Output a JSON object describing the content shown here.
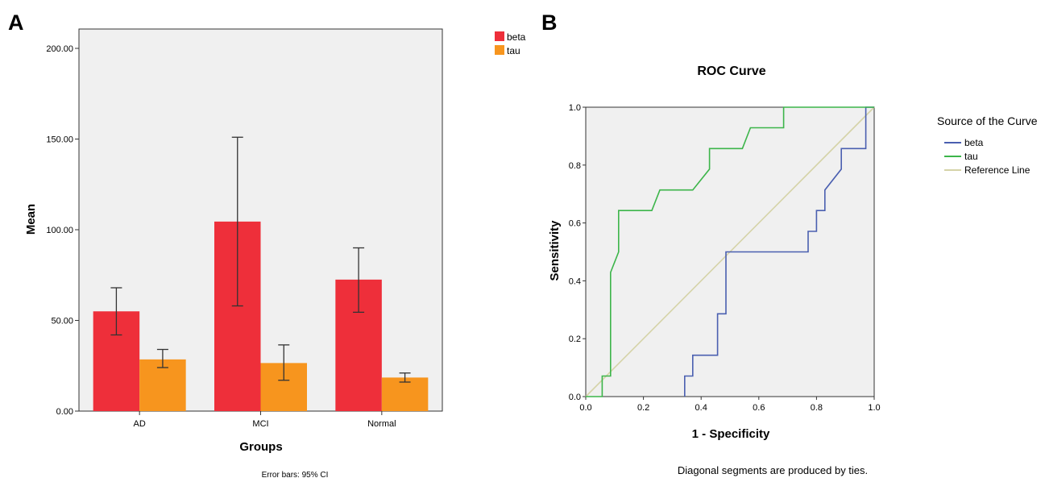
{
  "panel_a_letter": "A",
  "panel_b_letter": "B",
  "chart_data": [
    {
      "type": "bar",
      "title": "",
      "xlabel": "Groups",
      "ylabel": "Mean",
      "ylim": [
        0,
        210
      ],
      "yticks": [
        "0.00",
        "50.00",
        "100.00",
        "150.00",
        "200.00"
      ],
      "ytick_values": [
        0,
        50,
        100,
        150,
        200
      ],
      "categories": [
        "AD",
        "MCI",
        "Normal"
      ],
      "series": [
        {
          "name": "beta",
          "color": "#ee2f3a",
          "values": [
            55,
            104.5,
            72.5
          ],
          "ci_low": [
            42,
            58,
            54.5
          ],
          "ci_high": [
            68,
            151,
            90
          ]
        },
        {
          "name": "tau",
          "color": "#f7951e",
          "values": [
            28.5,
            26.5,
            18.5
          ],
          "ci_low": [
            24,
            17,
            16
          ],
          "ci_high": [
            34,
            36.5,
            21
          ]
        }
      ],
      "legend_position": "top-right",
      "note": "Error bars: 95% CI"
    },
    {
      "type": "line",
      "title": "ROC Curve",
      "xlabel": "1 - Specificity",
      "ylabel": "Sensitivity",
      "xlim": [
        0,
        1
      ],
      "ylim": [
        0,
        1
      ],
      "xticks": [
        "0.0",
        "0.2",
        "0.4",
        "0.6",
        "0.8",
        "1.0"
      ],
      "yticks": [
        "0.0",
        "0.2",
        "0.4",
        "0.6",
        "0.8",
        "1.0"
      ],
      "tick_values": [
        0,
        0.2,
        0.4,
        0.6,
        0.8,
        1.0
      ],
      "legend_title": "Source of the Curve",
      "legend_position": "right",
      "series": [
        {
          "name": "beta",
          "color": "#4a5fb0",
          "points": [
            [
              0.343,
              0
            ],
            [
              0.343,
              0.071
            ],
            [
              0.371,
              0.071
            ],
            [
              0.371,
              0.143
            ],
            [
              0.457,
              0.143
            ],
            [
              0.457,
              0.286
            ],
            [
              0.486,
              0.286
            ],
            [
              0.486,
              0.5
            ],
            [
              0.771,
              0.5
            ],
            [
              0.771,
              0.571
            ],
            [
              0.8,
              0.571
            ],
            [
              0.8,
              0.643
            ],
            [
              0.829,
              0.643
            ],
            [
              0.829,
              0.714
            ],
            [
              0.886,
              0.786
            ],
            [
              0.886,
              0.857
            ],
            [
              0.971,
              0.857
            ],
            [
              0.971,
              1
            ],
            [
              1,
              1
            ]
          ]
        },
        {
          "name": "tau",
          "color": "#3cb54a",
          "points": [
            [
              0,
              0
            ],
            [
              0.057,
              0
            ],
            [
              0.057,
              0.071
            ],
            [
              0.086,
              0.071
            ],
            [
              0.086,
              0.429
            ],
            [
              0.114,
              0.5
            ],
            [
              0.114,
              0.643
            ],
            [
              0.229,
              0.643
            ],
            [
              0.257,
              0.714
            ],
            [
              0.371,
              0.714
            ],
            [
              0.429,
              0.786
            ],
            [
              0.429,
              0.857
            ],
            [
              0.543,
              0.857
            ],
            [
              0.571,
              0.929
            ],
            [
              0.686,
              0.929
            ],
            [
              0.686,
              1
            ],
            [
              1,
              1
            ]
          ]
        },
        {
          "name": "Reference Line",
          "color": "#d5d3a8",
          "points": [
            [
              0,
              0
            ],
            [
              1,
              1
            ]
          ]
        }
      ],
      "footnote": "Diagonal segments are produced by ties."
    }
  ]
}
